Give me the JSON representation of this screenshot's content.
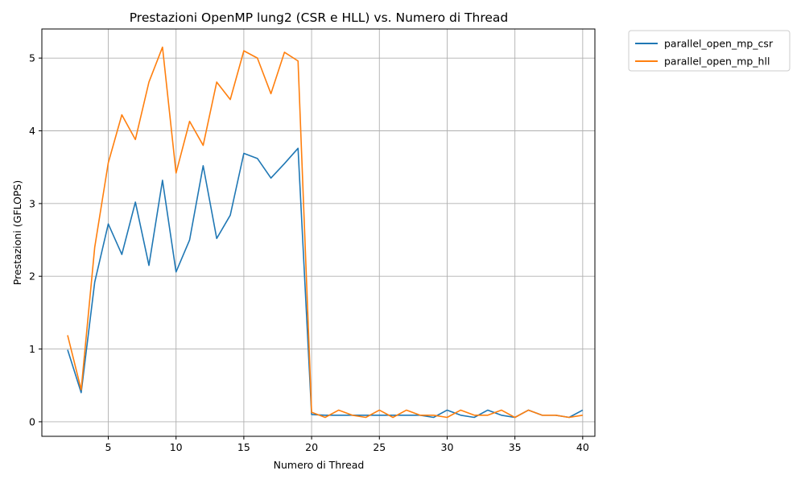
{
  "chart_data": {
    "type": "line",
    "title": "Prestazioni OpenMP lung2 (CSR e HLL) vs. Numero di Thread",
    "xlabel": "Numero di Thread",
    "ylabel": "Prestazioni (GFLOPS)",
    "xlim": [
      0.1,
      40.9
    ],
    "ylim": [
      -0.2,
      5.4
    ],
    "xticks": [
      5,
      10,
      15,
      20,
      25,
      30,
      35,
      40
    ],
    "yticks": [
      0,
      1,
      2,
      3,
      4,
      5
    ],
    "grid": true,
    "legend_position": "outside-top-right",
    "x": [
      2,
      3,
      4,
      5,
      6,
      7,
      8,
      9,
      10,
      11,
      12,
      13,
      14,
      15,
      16,
      17,
      18,
      19,
      20,
      21,
      22,
      23,
      24,
      25,
      26,
      27,
      28,
      29,
      30,
      31,
      32,
      33,
      34,
      35,
      36,
      37,
      38,
      39,
      40
    ],
    "series": [
      {
        "name": "parallel_open_mp_csr",
        "color": "#1f77b4",
        "values": [
          0.99,
          0.4,
          1.92,
          2.72,
          2.3,
          3.02,
          2.15,
          3.32,
          2.06,
          2.5,
          3.52,
          2.52,
          2.84,
          3.69,
          3.62,
          3.35,
          3.55,
          3.76,
          0.1,
          0.09,
          0.09,
          0.09,
          0.09,
          0.09,
          0.09,
          0.09,
          0.09,
          0.06,
          0.16,
          0.09,
          0.06,
          0.16,
          0.09,
          0.06,
          0.16,
          0.09,
          0.09,
          0.06,
          0.16
        ]
      },
      {
        "name": "parallel_open_mp_hll",
        "color": "#ff7f0e",
        "values": [
          1.19,
          0.44,
          2.4,
          3.56,
          4.22,
          3.88,
          4.67,
          5.15,
          3.42,
          4.13,
          3.8,
          4.67,
          4.43,
          5.1,
          5.0,
          4.51,
          5.08,
          4.96,
          0.13,
          0.06,
          0.16,
          0.09,
          0.06,
          0.16,
          0.06,
          0.16,
          0.09,
          0.09,
          0.06,
          0.16,
          0.09,
          0.09,
          0.16,
          0.06,
          0.16,
          0.09,
          0.09,
          0.06,
          0.09
        ]
      }
    ]
  }
}
